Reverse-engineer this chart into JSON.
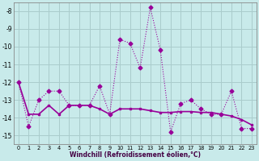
{
  "xlabel": "Windchill (Refroidissement éolien,°C)",
  "x": [
    0,
    1,
    2,
    3,
    4,
    5,
    6,
    7,
    8,
    9,
    10,
    11,
    12,
    13,
    14,
    15,
    16,
    17,
    18,
    19,
    20,
    21,
    22,
    23
  ],
  "y_windchill": [
    -12.0,
    -14.5,
    -13.0,
    -12.5,
    -12.5,
    -13.3,
    -13.3,
    -13.3,
    -12.2,
    -13.8,
    -9.6,
    -9.8,
    -11.2,
    -7.8,
    -10.2,
    -14.8,
    -13.2,
    -13.0,
    -13.5,
    -13.8,
    -13.8,
    -12.5,
    -14.6,
    -14.6
  ],
  "y_trend": [
    -12.0,
    -13.8,
    -13.8,
    -13.3,
    -13.8,
    -13.3,
    -13.3,
    -13.3,
    -13.5,
    -13.8,
    -13.5,
    -13.5,
    -13.5,
    -13.6,
    -13.7,
    -13.7,
    -13.65,
    -13.65,
    -13.7,
    -13.7,
    -13.8,
    -13.9,
    -14.1,
    -14.4
  ],
  "line_color": "#990099",
  "bg_color": "#c8eaea",
  "grid_color": "#aacccc",
  "ylim": [
    -15.5,
    -7.5
  ],
  "yticks": [
    -15,
    -14,
    -13,
    -12,
    -11,
    -10,
    -9,
    -8
  ],
  "xlim": [
    -0.5,
    23.5
  ]
}
